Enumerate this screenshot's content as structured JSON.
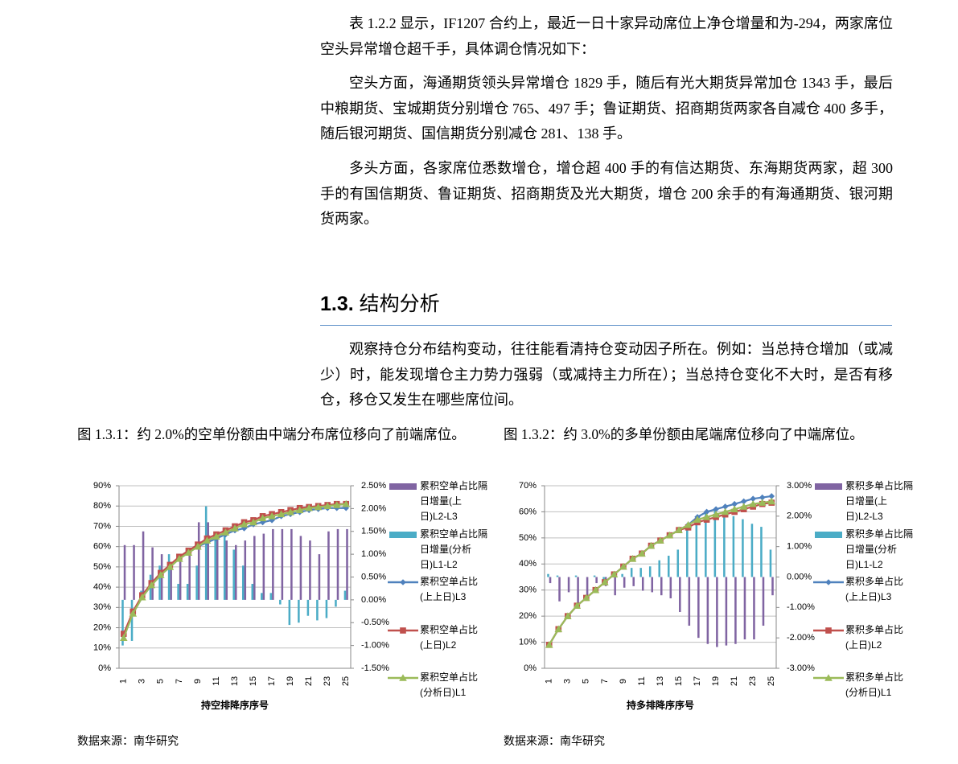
{
  "paragraphs": [
    "表 1.2.2 显示，IF1207 合约上，最近一日十家异动席位上净仓增量和为-294，两家席位空头异常增仓超千手，具体调仓情况如下：",
    "空头方面，海通期货领头异常增仓 1829 手，随后有光大期货异常加仓 1343 手，最后中粮期货、宝城期货分别增仓 765、497 手；鲁证期货、招商期货两家各自减仓 400 多手，随后银河期货、国信期货分别减仓 281、138 手。",
    "多头方面，各家席位悉数增仓，增仓超 400 手的有信达期货、东海期货两家，超 300 手的有国信期货、鲁证期货、招商期货及光大期货，增仓 200 余手的有海通期货、银河期货两家。"
  ],
  "section": {
    "number": "1.3.",
    "title": "结构分析"
  },
  "section_paragraph": "观察持仓分布结构变动，往往能看清持仓变动因子所在。例如：当总持仓增加（或减少）时，能发现增仓主力势力强弱（或减持主力所在）；当总持仓变化不大时，是否有移仓，移仓又发生在哪些席位间。",
  "figures": [
    {
      "caption": "图 1.3.1：约 2.0%的空单份额由中端分布席位移向了前端席位。",
      "source": "数据来源：南华研究"
    },
    {
      "caption": "图 1.3.2：约 3.0%的多单份额由尾端席位移向了中端席位。",
      "source": "数据来源：南华研究"
    }
  ],
  "chart_data": [
    {
      "type": "combo",
      "x_label": "持空排降序序号",
      "categories": [
        "1",
        null,
        "3",
        null,
        "5",
        null,
        "7",
        null,
        "9",
        null,
        "11",
        null,
        "13",
        null,
        "15",
        null,
        "17",
        null,
        "19",
        null,
        "21",
        null,
        "23",
        null,
        "25"
      ],
      "ylim": [
        0,
        90
      ],
      "yticks": [
        {
          "value": 0,
          "label": "0%"
        },
        {
          "value": 10,
          "label": "10%"
        },
        {
          "value": 20,
          "label": "20%"
        },
        {
          "value": 30,
          "label": "30%"
        },
        {
          "value": 40,
          "label": "40%"
        },
        {
          "value": 50,
          "label": "50%"
        },
        {
          "value": 60,
          "label": "60%"
        },
        {
          "value": 70,
          "label": "70%"
        },
        {
          "value": 80,
          "label": "80%"
        },
        {
          "value": 90,
          "label": "90%"
        }
      ],
      "y2lim": [
        -1.5,
        2.5
      ],
      "y2ticks": [
        {
          "value": -1.5,
          "label": "-1.50%"
        },
        {
          "value": -1,
          "label": "-1.00%"
        },
        {
          "value": -0.5,
          "label": "-0.50%"
        },
        {
          "value": 0,
          "label": "0.00%"
        },
        {
          "value": 0.5,
          "label": "0.50%"
        },
        {
          "value": 1,
          "label": "1.00%"
        },
        {
          "value": 1.5,
          "label": "1.50%"
        },
        {
          "value": 2,
          "label": "2.00%"
        },
        {
          "value": 2.5,
          "label": "2.50%"
        }
      ],
      "grid": true,
      "series": [
        {
          "name": "累积空单占比隔日增量(上日)L2-L3",
          "type": "bar",
          "axis": "y2",
          "color": "#8064a2",
          "values": [
            1.2,
            1.2,
            1.5,
            1.15,
            1.0,
            0.8,
            1.0,
            1.05,
            1.7,
            1.7,
            1.35,
            1.3,
            1.2,
            1.3,
            1.4,
            1.45,
            1.55,
            1.55,
            1.55,
            1.4,
            1.3,
            1.0,
            1.5,
            1.55,
            1.55
          ]
        },
        {
          "name": "累积空单占比隔日增量(分析日)L1-L2",
          "type": "bar",
          "axis": "y2",
          "color": "#4bacc6",
          "values": [
            -1.0,
            -0.9,
            0.2,
            0.55,
            0.75,
            1.0,
            0.35,
            0.35,
            0.75,
            2.05,
            1.4,
            1.45,
            1.1,
            0.75,
            0.35,
            0.15,
            0.15,
            -0.1,
            -0.55,
            -0.5,
            -0.35,
            -0.45,
            -0.4,
            -0.15,
            0.2
          ]
        },
        {
          "name": "累积空单占比(上上日)L3",
          "type": "line",
          "marker": "diamond",
          "color": "#4f81bd",
          "values": [
            16,
            27,
            35,
            41,
            46,
            50,
            54,
            57,
            60,
            62,
            64,
            66,
            68,
            69,
            71,
            72,
            73,
            75,
            76,
            77,
            78,
            78.5,
            79,
            79,
            79
          ]
        },
        {
          "name": "累积空单占比(上日)L2",
          "type": "line",
          "marker": "square",
          "color": "#c0504d",
          "values": [
            17,
            28,
            36,
            42,
            47,
            51,
            55,
            58,
            61,
            64,
            66,
            68,
            70,
            72,
            73,
            75,
            76,
            77,
            78,
            79,
            79.5,
            80,
            80.5,
            81,
            81
          ]
        },
        {
          "name": "累积空单占比(分析日)L1",
          "type": "line",
          "marker": "triangle",
          "color": "#9bbb59",
          "values": [
            15,
            27,
            35,
            41,
            46,
            50,
            54,
            57,
            60,
            63,
            65,
            67,
            69,
            71,
            72,
            74,
            75,
            76,
            77,
            78,
            79,
            79.5,
            80,
            80.5,
            81
          ]
        }
      ]
    },
    {
      "type": "combo",
      "x_label": "持多排降序序号",
      "categories": [
        "1",
        null,
        "3",
        null,
        "5",
        null,
        "7",
        null,
        "9",
        null,
        "11",
        null,
        "13",
        null,
        "15",
        null,
        "17",
        null,
        "19",
        null,
        "21",
        null,
        "23",
        null,
        "25"
      ],
      "ylim": [
        0,
        70
      ],
      "yticks": [
        {
          "value": 0,
          "label": "0%"
        },
        {
          "value": 10,
          "label": "10%"
        },
        {
          "value": 20,
          "label": "20%"
        },
        {
          "value": 30,
          "label": "30%"
        },
        {
          "value": 40,
          "label": "40%"
        },
        {
          "value": 50,
          "label": "50%"
        },
        {
          "value": 60,
          "label": "60%"
        },
        {
          "value": 70,
          "label": "70%"
        }
      ],
      "y2lim": [
        -3,
        3
      ],
      "y2ticks": [
        {
          "value": -3,
          "label": "-3.00%"
        },
        {
          "value": -2,
          "label": "-2.00%"
        },
        {
          "value": -1,
          "label": "-1.00%"
        },
        {
          "value": 0,
          "label": "0.00%"
        },
        {
          "value": 1,
          "label": "1.00%"
        },
        {
          "value": 2,
          "label": "2.00%"
        },
        {
          "value": 3,
          "label": "3.00%"
        }
      ],
      "grid": true,
      "series": [
        {
          "name": "累积多单占比隔日增量(上日)L2-L3",
          "type": "bar",
          "axis": "y2",
          "color": "#8064a2",
          "values": [
            -0.2,
            -0.8,
            -0.5,
            -1.0,
            -0.6,
            -0.2,
            -0.3,
            -0.6,
            -0.35,
            -0.3,
            -0.45,
            -0.5,
            -0.6,
            -0.7,
            -1.15,
            -1.6,
            -2.0,
            -2.2,
            -2.3,
            -2.25,
            -2.2,
            -2.05,
            -2.05,
            -1.6,
            -0.6
          ]
        },
        {
          "name": "累积多单占比隔日增量(分析日)L1-L2",
          "type": "bar",
          "axis": "y2",
          "color": "#4bacc6",
          "values": [
            0.1,
            0.05,
            0,
            0.05,
            0,
            0.05,
            -0.2,
            0.05,
            0.1,
            0.3,
            0.3,
            0.35,
            0.55,
            0.7,
            0.9,
            1.55,
            2.0,
            2.15,
            2.25,
            2.05,
            2.0,
            1.9,
            1.75,
            1.65,
            0.9
          ]
        },
        {
          "name": "累积多单占比(上上日)L3",
          "type": "line",
          "marker": "diamond",
          "color": "#4f81bd",
          "values": [
            9,
            15,
            20,
            24,
            27,
            30,
            33,
            36,
            39,
            42,
            44,
            47,
            49,
            51,
            53,
            55,
            58,
            60,
            61,
            62,
            63,
            64,
            65,
            65.5,
            66
          ]
        },
        {
          "name": "累积多单占比(上日)L2",
          "type": "line",
          "marker": "square",
          "color": "#c0504d",
          "values": [
            9,
            15,
            20,
            24,
            27,
            30,
            33,
            36,
            39,
            42,
            44,
            47,
            49,
            51,
            53,
            54,
            56,
            57,
            58,
            59,
            60,
            61,
            62,
            63,
            63.5
          ]
        },
        {
          "name": "累积多单占比(分析日)L1",
          "type": "line",
          "marker": "triangle",
          "color": "#9bbb59",
          "values": [
            9,
            15,
            20,
            24,
            27,
            30,
            33,
            36,
            39,
            42,
            44,
            47,
            49,
            51,
            53,
            55,
            57,
            58,
            59,
            60,
            61,
            62,
            63,
            63.5,
            64
          ]
        }
      ]
    }
  ]
}
